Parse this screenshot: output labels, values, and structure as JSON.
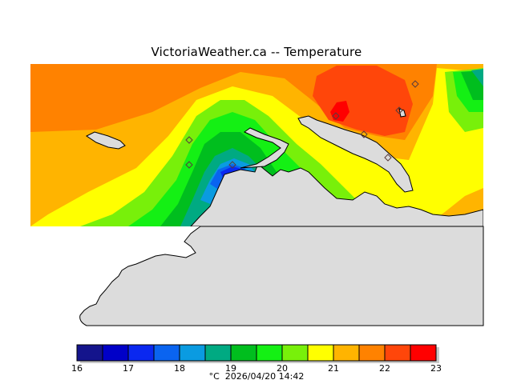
{
  "title": "VictoriaWeather.ca  --  Temperature",
  "footer": {
    "unit": "°C",
    "timestamp": "2026/04/20 14:42"
  },
  "colorbar": {
    "min": 16,
    "max": 23,
    "tick_labels": [
      "16",
      "17",
      "18",
      "19",
      "20",
      "21",
      "22",
      "23"
    ],
    "colors": [
      "#14148c",
      "#0000c8",
      "#0a28f0",
      "#0a64f0",
      "#0a9be1",
      "#00aa82",
      "#00be1e",
      "#14f014",
      "#78f00a",
      "#ffff00",
      "#ffb400",
      "#ff8200",
      "#ff460a",
      "#ff0000"
    ]
  },
  "map": {
    "land_color": "#dcdcdc",
    "coastline_color": "#000000",
    "station_marker": "diamond",
    "station_count": 8
  }
}
